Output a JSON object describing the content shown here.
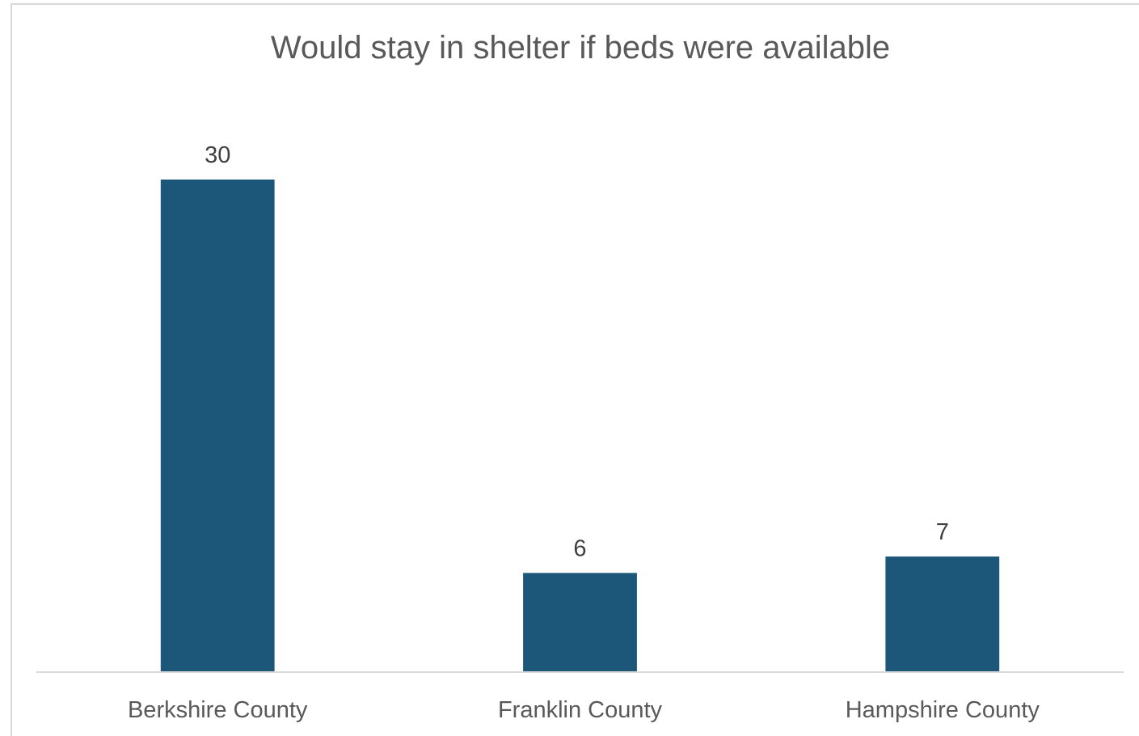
{
  "chart_data": {
    "type": "bar",
    "title": "Would stay in shelter if beds were available",
    "categories": [
      "Berkshire County",
      "Franklin County",
      "Hampshire County"
    ],
    "values": [
      30,
      6,
      7
    ],
    "data_labels": [
      "30",
      "6",
      "7"
    ],
    "xlabel": "",
    "ylabel": "",
    "ylim": [
      0,
      30
    ],
    "grid": false,
    "legend": "none",
    "bar_color": "#1c5678",
    "axis_color": "#d9d9d9"
  }
}
